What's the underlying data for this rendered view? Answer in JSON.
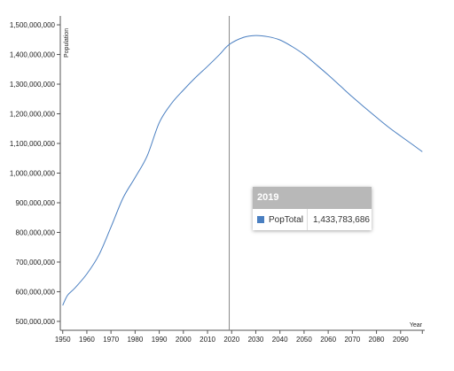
{
  "chart_data": {
    "type": "line",
    "title": "",
    "xlabel": "Year",
    "ylabel": "Population",
    "xlim": [
      1949,
      2100
    ],
    "ylim": [
      470000000,
      1530000000
    ],
    "x_ticks": [
      1950,
      1960,
      1970,
      1980,
      1990,
      2000,
      2010,
      2020,
      2030,
      2040,
      2050,
      2060,
      2070,
      2080,
      2090
    ],
    "y_ticks": [
      500000000,
      600000000,
      700000000,
      800000000,
      900000000,
      1000000000,
      1100000000,
      1200000000,
      1300000000,
      1400000000,
      1500000000
    ],
    "y_tick_labels": [
      "500,000,000",
      "600,000,000",
      "700,000,000",
      "800,000,000",
      "900,000,000",
      "1,000,000,000",
      "1,100,000,000",
      "1,200,000,000",
      "1,300,000,000",
      "1,400,000,000",
      "1,500,000,000"
    ],
    "line_color": "#4a7fc1",
    "marker_year": 2019,
    "series": [
      {
        "name": "PopTotal",
        "x": [
          1950,
          1952,
          1955,
          1960,
          1965,
          1970,
          1975,
          1980,
          1985,
          1990,
          1995,
          2000,
          2005,
          2010,
          2015,
          2019,
          2025,
          2030,
          2035,
          2040,
          2045,
          2050,
          2055,
          2060,
          2065,
          2070,
          2075,
          2080,
          2085,
          2090,
          2095,
          2099
        ],
        "values": [
          554000000,
          588000000,
          612000000,
          660000000,
          724000000,
          818000000,
          916000000,
          985000000,
          1058000000,
          1170000000,
          1234000000,
          1280000000,
          1322000000,
          1360000000,
          1400000000,
          1433783686,
          1458000000,
          1464000000,
          1460000000,
          1449000000,
          1427000000,
          1400000000,
          1366000000,
          1331000000,
          1294000000,
          1257000000,
          1222000000,
          1188000000,
          1155000000,
          1125000000,
          1096000000,
          1072000000
        ]
      }
    ]
  },
  "tooltip": {
    "year": "2019",
    "series_name": "PopTotal",
    "value": "1,433,783,686",
    "swatch_color": "#4a7fc1"
  }
}
